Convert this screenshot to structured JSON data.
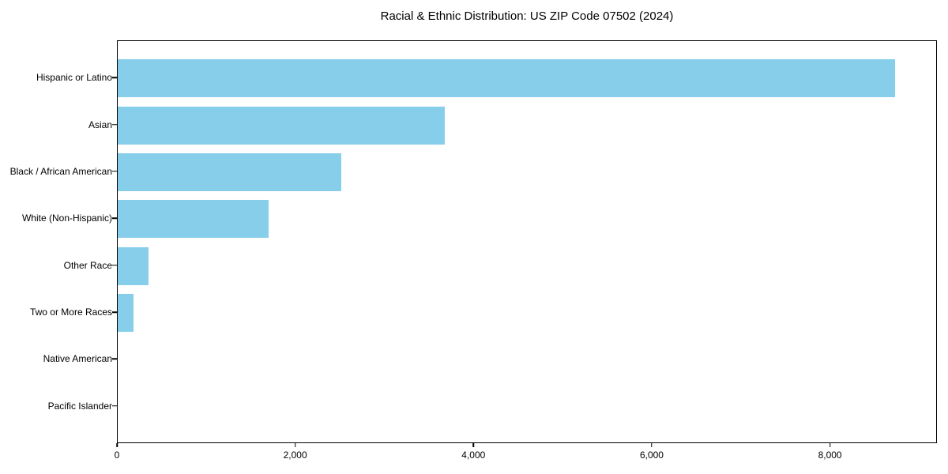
{
  "figure": {
    "background_color": "#ffffff",
    "axis_color": "#000000",
    "text_color": "#000000"
  },
  "chart_data": {
    "type": "bar",
    "orientation": "horizontal",
    "title": "Racial & Ethnic Distribution: US ZIP Code 07502 (2024)",
    "categories": [
      "Hispanic or Latino",
      "Asian",
      "Black / African American",
      "White (Non-Hispanic)",
      "Other Race",
      "Two or More Races",
      "Native American",
      "Pacific Islander"
    ],
    "values": [
      8740,
      3680,
      2510,
      1700,
      350,
      180,
      0,
      0
    ],
    "xlabel": "",
    "ylabel": "",
    "xlim": [
      0,
      9200
    ],
    "xticks": [
      0,
      2000,
      4000,
      6000,
      8000
    ],
    "xtick_labels": [
      "0",
      "2,000",
      "4,000",
      "6,000",
      "8,000"
    ],
    "bar_color": "#87CEEB",
    "grid": false,
    "legend": "none"
  }
}
